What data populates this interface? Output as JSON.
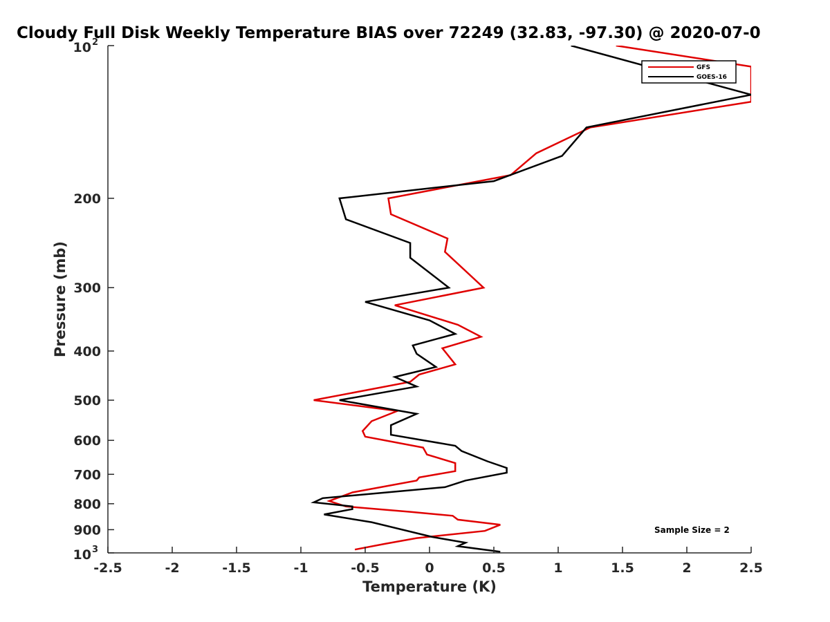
{
  "chart_data": {
    "type": "line",
    "title": "Cloudy Full Disk Weekly Temperature BIAS over 72249 (32.83, -97.30) @ 2020-07-0",
    "xlabel": "Temperature (K)",
    "ylabel": "Pressure (mb)",
    "xlim": [
      -2.5,
      2.5
    ],
    "ylim": [
      100,
      1000
    ],
    "y_scale": "log",
    "y_reversed": true,
    "x_ticks": [
      "-2.5",
      "-2",
      "-1.5",
      "-1",
      "-0.5",
      "0",
      "0.5",
      "1",
      "1.5",
      "2",
      "2.5"
    ],
    "y_ticks": [
      {
        "value": 100,
        "label": "10",
        "sup": "2"
      },
      {
        "value": 200,
        "label": "200"
      },
      {
        "value": 300,
        "label": "300"
      },
      {
        "value": 400,
        "label": "400"
      },
      {
        "value": 500,
        "label": "500"
      },
      {
        "value": 600,
        "label": "600"
      },
      {
        "value": 700,
        "label": "700"
      },
      {
        "value": 800,
        "label": "800"
      },
      {
        "value": 900,
        "label": "900"
      },
      {
        "value": 1000,
        "label": "10",
        "sup": "3"
      }
    ],
    "grid": false,
    "legend_position": "top-right",
    "annotation": "Sample Size = 2",
    "series": [
      {
        "name": "GFS",
        "color": "#e00000",
        "points": [
          [
            1.45,
            100
          ],
          [
            2.5,
            110
          ],
          [
            2.5,
            129
          ],
          [
            1.25,
            145
          ],
          [
            0.83,
            163
          ],
          [
            0.63,
            180
          ],
          [
            -0.32,
            200
          ],
          [
            -0.3,
            215
          ],
          [
            0.14,
            240
          ],
          [
            0.12,
            255
          ],
          [
            0.42,
            300
          ],
          [
            -0.27,
            325
          ],
          [
            0.22,
            355
          ],
          [
            0.4,
            375
          ],
          [
            0.1,
            395
          ],
          [
            0.2,
            425
          ],
          [
            -0.08,
            445
          ],
          [
            -0.15,
            460
          ],
          [
            -0.9,
            500
          ],
          [
            -0.25,
            525
          ],
          [
            -0.45,
            550
          ],
          [
            -0.52,
            575
          ],
          [
            -0.5,
            590
          ],
          [
            -0.05,
            620
          ],
          [
            -0.02,
            640
          ],
          [
            0.2,
            665
          ],
          [
            0.2,
            690
          ],
          [
            -0.08,
            710
          ],
          [
            -0.1,
            720
          ],
          [
            -0.6,
            760
          ],
          [
            -0.78,
            790
          ],
          [
            -0.65,
            810
          ],
          [
            -0.15,
            830
          ],
          [
            0.18,
            845
          ],
          [
            0.22,
            860
          ],
          [
            0.55,
            880
          ],
          [
            0.43,
            905
          ],
          [
            -0.1,
            935
          ],
          [
            -0.35,
            960
          ],
          [
            -0.58,
            985
          ]
        ]
      },
      {
        "name": "GOES-16",
        "color": "#000000",
        "points": [
          [
            1.1,
            100
          ],
          [
            2.5,
            125
          ],
          [
            1.22,
            145
          ],
          [
            1.03,
            165
          ],
          [
            0.5,
            185
          ],
          [
            -0.7,
            200
          ],
          [
            -0.65,
            220
          ],
          [
            -0.15,
            245
          ],
          [
            -0.15,
            262
          ],
          [
            0.15,
            300
          ],
          [
            -0.5,
            320
          ],
          [
            0.0,
            348
          ],
          [
            0.2,
            370
          ],
          [
            -0.13,
            390
          ],
          [
            -0.1,
            405
          ],
          [
            0.05,
            430
          ],
          [
            -0.27,
            450
          ],
          [
            -0.1,
            470
          ],
          [
            -0.7,
            500
          ],
          [
            -0.1,
            532
          ],
          [
            -0.3,
            560
          ],
          [
            -0.3,
            580
          ],
          [
            -0.3,
            585
          ],
          [
            0.2,
            615
          ],
          [
            0.25,
            630
          ],
          [
            0.45,
            660
          ],
          [
            0.6,
            680
          ],
          [
            0.6,
            695
          ],
          [
            0.28,
            720
          ],
          [
            0.12,
            742
          ],
          [
            -0.83,
            780
          ],
          [
            -0.9,
            795
          ],
          [
            -0.6,
            810
          ],
          [
            -0.6,
            820
          ],
          [
            -0.82,
            840
          ],
          [
            -0.45,
            870
          ],
          [
            0.02,
            930
          ],
          [
            0.28,
            955
          ],
          [
            0.22,
            970
          ],
          [
            0.55,
            995
          ]
        ]
      }
    ]
  }
}
